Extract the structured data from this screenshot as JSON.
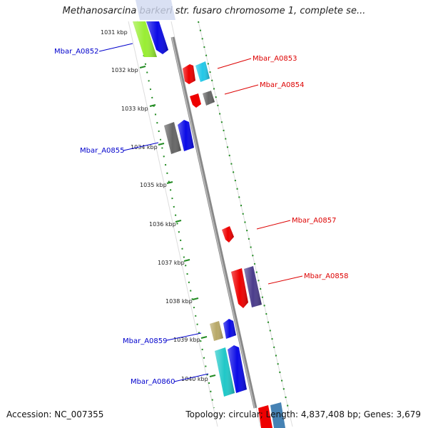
{
  "title": "Methanosarcina barkeri str. fusaro chromosome 1, complete se...",
  "footer": {
    "accession": "Accession: NC_007355",
    "summary": "Topology: circular; Length: 4,837,408 bp; Genes: 3,679"
  },
  "kbp_ticks": [
    "1031 kbp",
    "1032 kbp",
    "1033 kbp",
    "1034 kbp",
    "1035 kbp",
    "1036 kbp",
    "1037 kbp",
    "1038 kbp",
    "1039 kbp",
    "1040 kbp"
  ],
  "gene_labels": [
    {
      "name": "Mbar_A0852",
      "color": "#0000cc"
    },
    {
      "name": "Mbar_A0853",
      "color": "#dd0000"
    },
    {
      "name": "Mbar_A0854",
      "color": "#dd0000"
    },
    {
      "name": "Mbar_A0855",
      "color": "#0000cc"
    },
    {
      "name": "Mbar_A0857",
      "color": "#dd0000"
    },
    {
      "name": "Mbar_A0858",
      "color": "#dd0000"
    },
    {
      "name": "Mbar_A0859",
      "color": "#0000cc"
    },
    {
      "name": "Mbar_A0860",
      "color": "#0000cc"
    }
  ],
  "colors": {
    "backbone": "#888888",
    "tick_dots": "#228b22",
    "forward_label": "#0000cc",
    "reverse_label": "#dd0000",
    "blue": "#0a0ae6",
    "red": "#ee0000",
    "gray": "#666666",
    "cyan": "#22c8e8",
    "lime": "#99ee33",
    "navy": "#4b3d8c",
    "khaki": "#b8a868",
    "teal": "#20c8c8",
    "steel": "#4682b4"
  }
}
